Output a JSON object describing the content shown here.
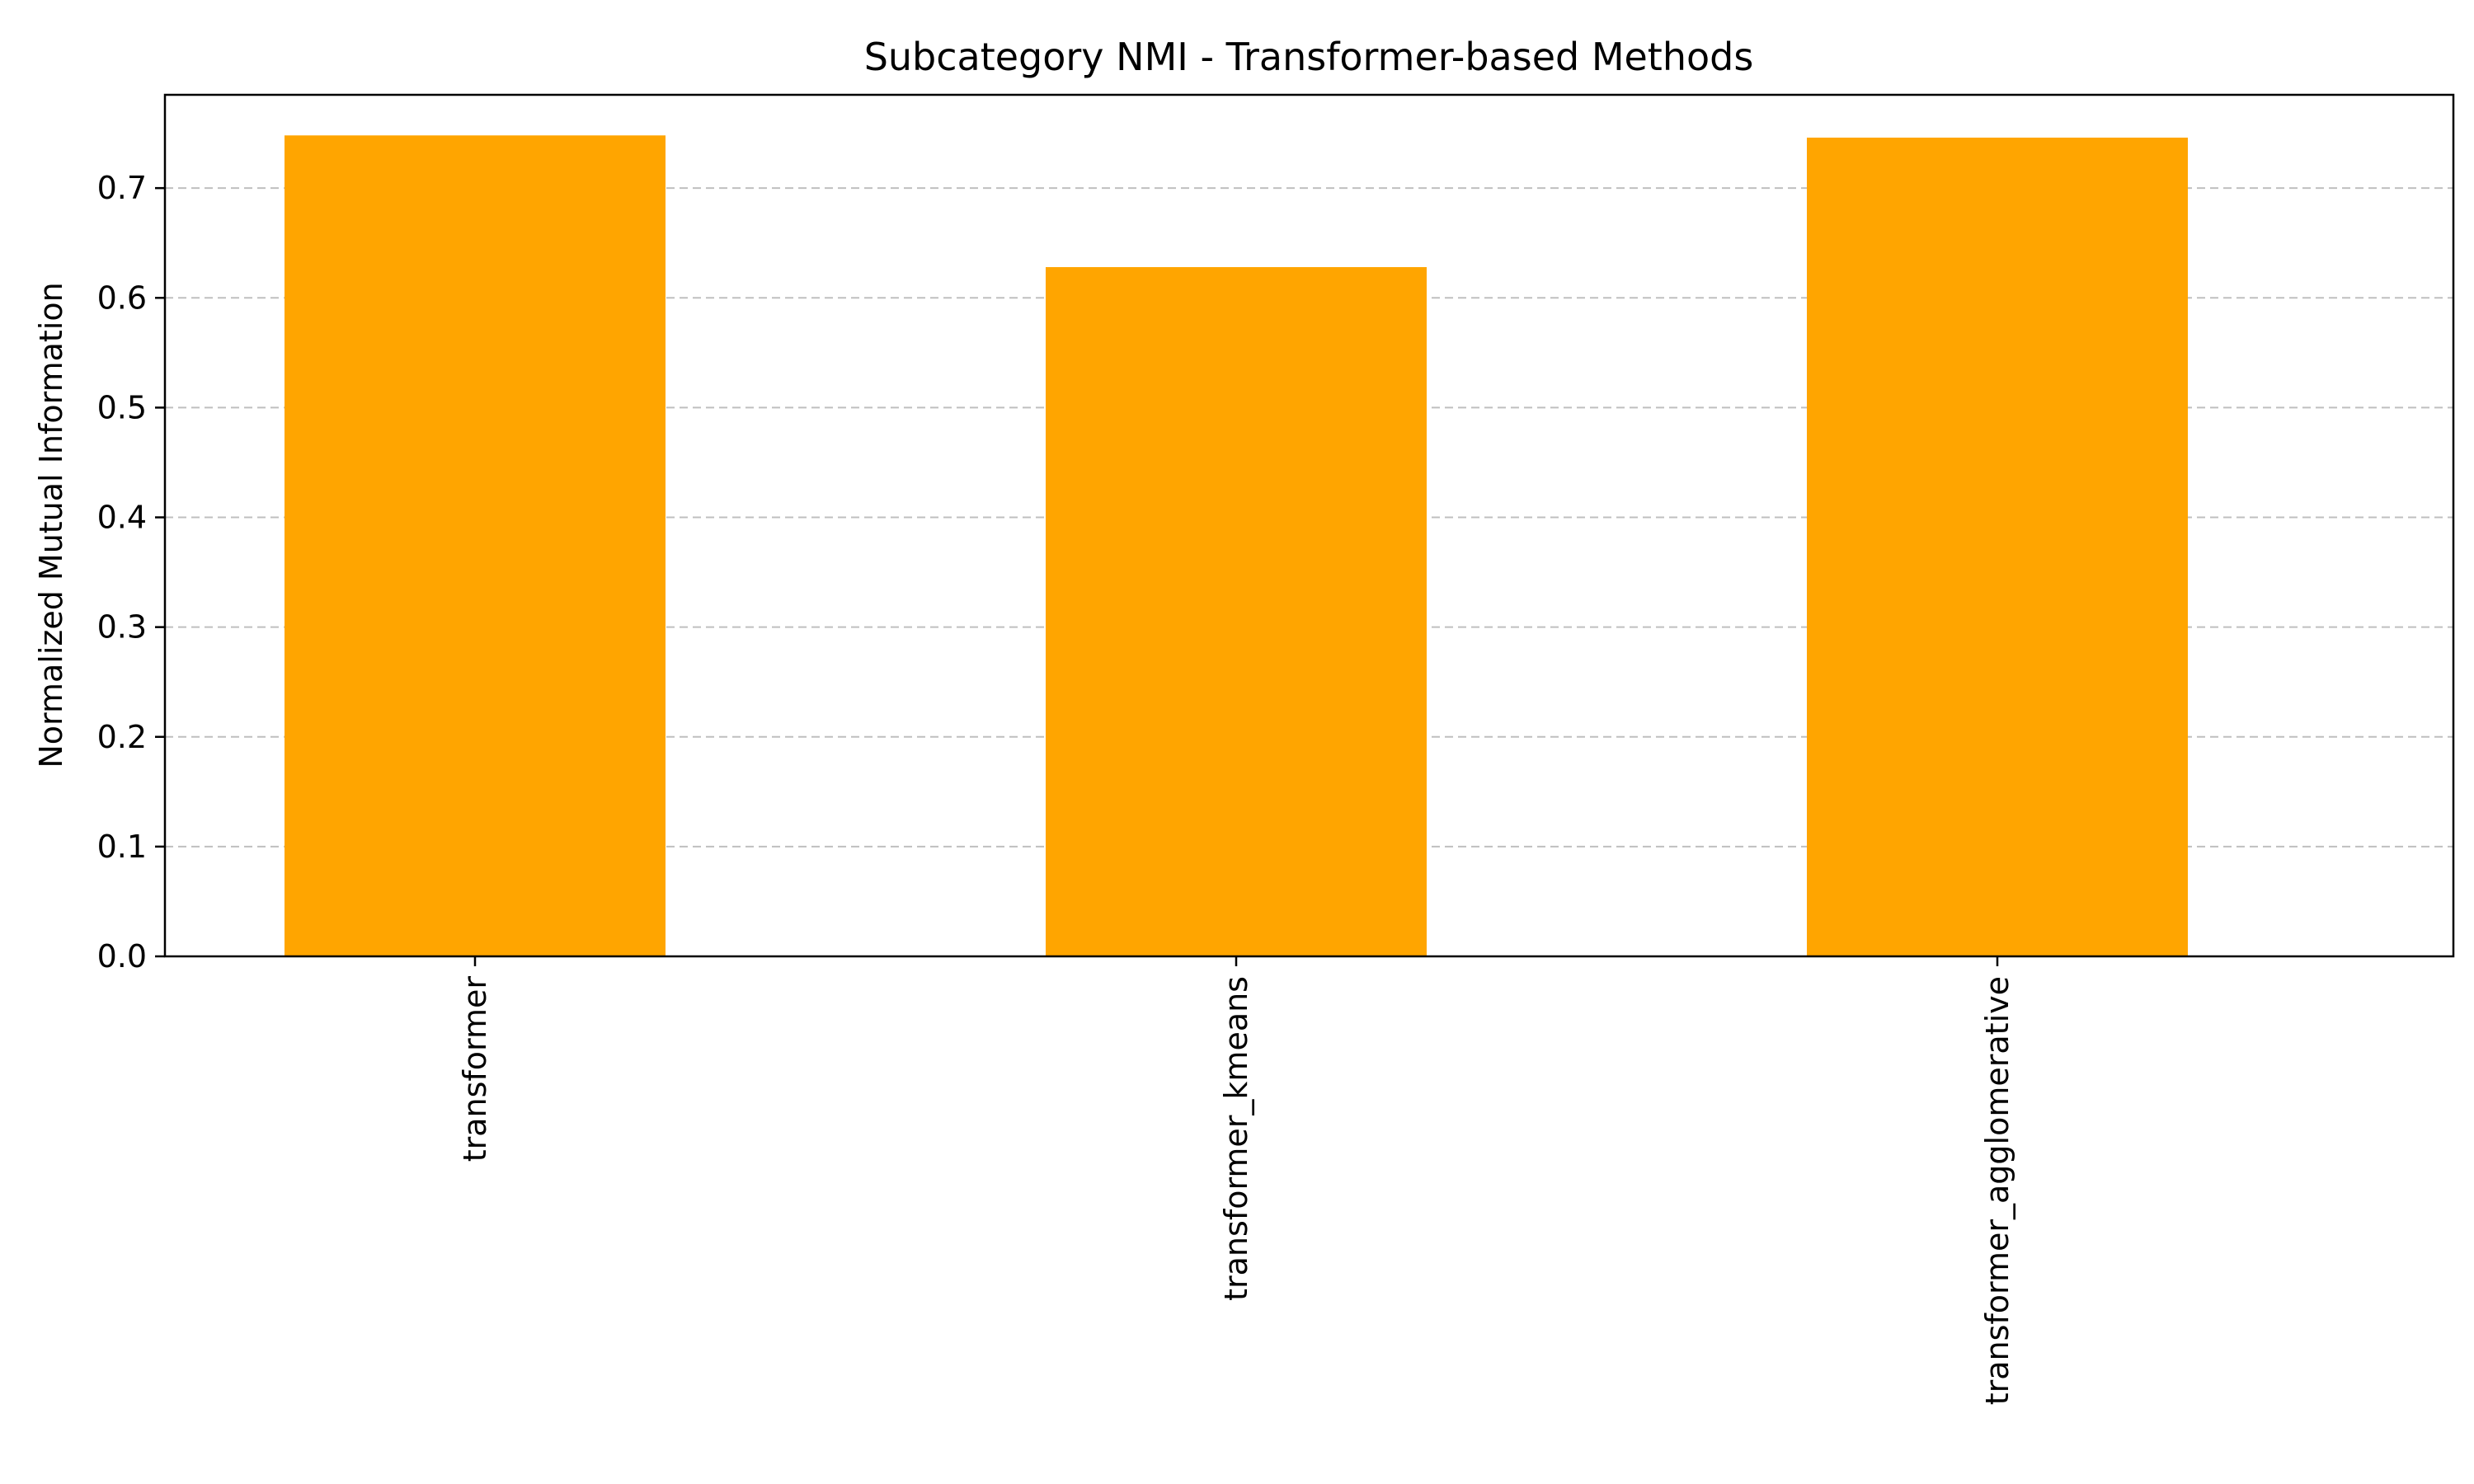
{
  "chart_data": {
    "type": "bar",
    "title": "Subcategory NMI - Transformer-based Methods",
    "xlabel": "",
    "ylabel": "Normalized Mutual Information",
    "categories": [
      "transformer",
      "transformer_kmeans",
      "transformer_agglomerative"
    ],
    "values": [
      0.748,
      0.628,
      0.746
    ],
    "ylim": [
      0,
      0.785
    ],
    "yticks": [
      0.0,
      0.1,
      0.2,
      0.3,
      0.4,
      0.5,
      0.6,
      0.7
    ],
    "ytick_labels": [
      "0.0",
      "0.1",
      "0.2",
      "0.3",
      "0.4",
      "0.5",
      "0.6",
      "0.7"
    ],
    "grid": "y-dashed",
    "legend": "none",
    "bar_color": "#FFA500"
  }
}
